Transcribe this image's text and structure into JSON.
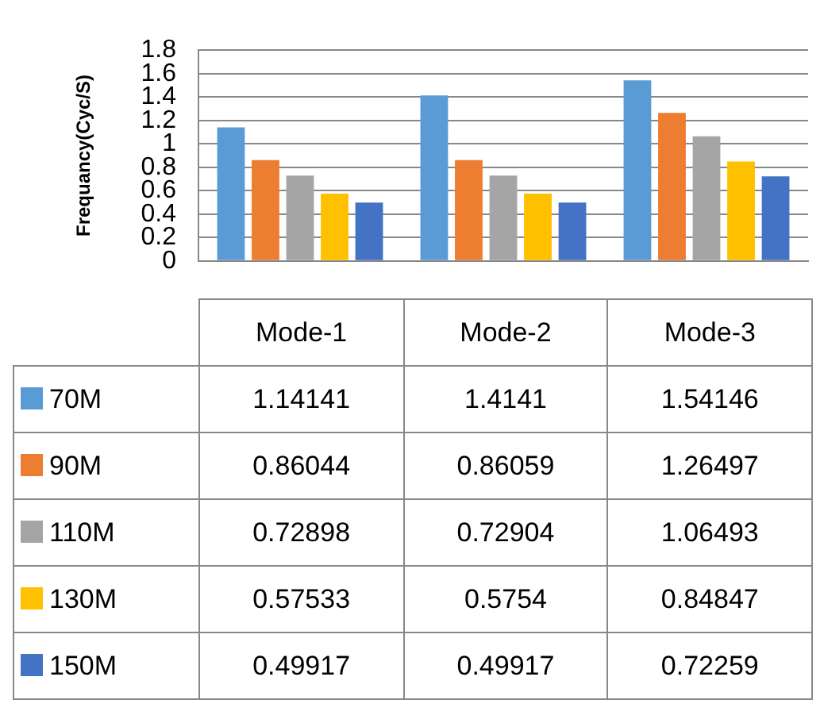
{
  "chart_data": {
    "type": "bar",
    "ylabel": "Frequancy(Cyc/S)",
    "categories": [
      "Mode-1",
      "Mode-2",
      "Mode-3"
    ],
    "series": [
      {
        "name": "70M",
        "color": "#5b9bd5",
        "values": [
          1.14141,
          1.4141,
          1.54146
        ]
      },
      {
        "name": "90M",
        "color": "#ed7d31",
        "values": [
          0.86044,
          0.86059,
          1.26497
        ]
      },
      {
        "name": "110M",
        "color": "#a5a5a5",
        "values": [
          0.72898,
          0.72904,
          1.06493
        ]
      },
      {
        "name": "130M",
        "color": "#ffc000",
        "values": [
          0.57533,
          0.5754,
          0.84847
        ]
      },
      {
        "name": "150M",
        "color": "#4472c4",
        "values": [
          0.49917,
          0.49917,
          0.72259
        ]
      }
    ],
    "ylim": [
      0,
      1.8
    ],
    "yticks": [
      0,
      0.2,
      0.4,
      0.6,
      0.8,
      1,
      1.2,
      1.4,
      1.6,
      1.8
    ],
    "grid": "y",
    "data_labels": true,
    "legend": "bottom"
  }
}
